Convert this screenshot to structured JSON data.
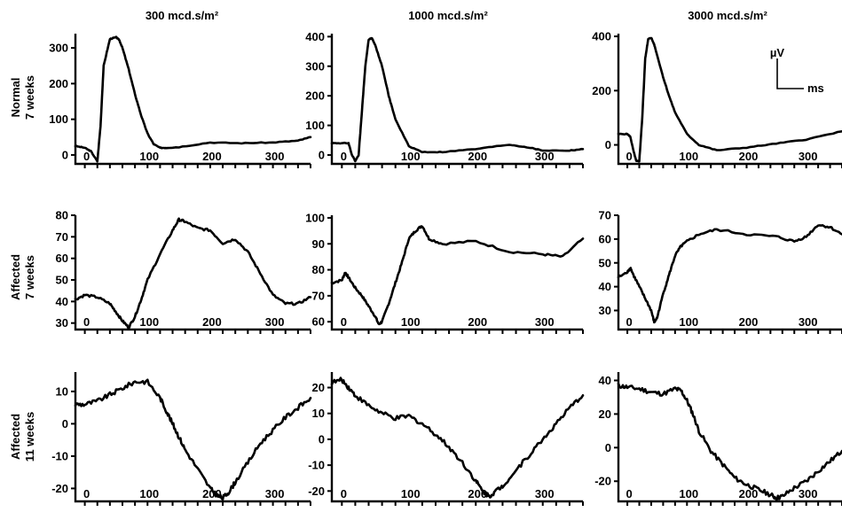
{
  "columns": [
    "300 mcd.s/m²",
    "1000 mcd.s/m²",
    "3000 mcd.s/m²"
  ],
  "rows": [
    {
      "line1": "Normal",
      "line2": "7 weeks"
    },
    {
      "line1": "Affected",
      "line2": "7 weeks"
    },
    {
      "line1": "Affected",
      "line2": "11 weeks"
    }
  ],
  "scale_bar": {
    "y_unit": "µV",
    "x_unit": "ms"
  },
  "chart_data": [
    {
      "type": "line",
      "column": "300 mcd.s/m²",
      "row": "Normal 7 weeks",
      "xlim": [
        -15,
        360
      ],
      "ylim": [
        -25,
        340
      ],
      "xticks": [
        0,
        100,
        200,
        300
      ],
      "yticks": [
        0,
        100,
        200,
        300
      ],
      "x": [
        -15,
        0,
        10,
        20,
        25,
        30,
        40,
        50,
        55,
        60,
        70,
        80,
        90,
        100,
        110,
        120,
        130,
        150,
        200,
        250,
        300,
        340,
        360
      ],
      "y": [
        25,
        20,
        10,
        -18,
        80,
        250,
        325,
        330,
        322,
        300,
        240,
        170,
        110,
        60,
        30,
        20,
        20,
        22,
        35,
        33,
        35,
        40,
        50
      ]
    },
    {
      "type": "line",
      "column": "1000 mcd.s/m²",
      "row": "Normal 7 weeks",
      "xlim": [
        -15,
        360
      ],
      "ylim": [
        -30,
        410
      ],
      "xticks": [
        0,
        100,
        200,
        300
      ],
      "yticks": [
        0,
        100,
        200,
        300,
        400
      ],
      "x": [
        -15,
        0,
        10,
        15,
        20,
        25,
        30,
        35,
        40,
        45,
        50,
        60,
        70,
        80,
        100,
        120,
        150,
        200,
        250,
        280,
        300,
        340,
        360
      ],
      "y": [
        40,
        40,
        40,
        0,
        -20,
        0,
        150,
        300,
        390,
        395,
        370,
        300,
        200,
        120,
        30,
        10,
        10,
        20,
        35,
        25,
        15,
        15,
        20
      ]
    },
    {
      "type": "line",
      "column": "3000 mcd.s/m²",
      "row": "Normal 7 weeks",
      "xlim": [
        -15,
        360
      ],
      "ylim": [
        -70,
        410
      ],
      "xticks": [
        0,
        100,
        200,
        300
      ],
      "yticks": [
        0,
        200,
        400
      ],
      "x": [
        -15,
        0,
        5,
        10,
        15,
        20,
        25,
        30,
        35,
        40,
        45,
        50,
        60,
        70,
        80,
        100,
        120,
        150,
        200,
        250,
        300,
        360
      ],
      "y": [
        40,
        40,
        30,
        -20,
        -60,
        -60,
        100,
        320,
        390,
        395,
        370,
        330,
        250,
        180,
        120,
        40,
        0,
        -20,
        -10,
        5,
        20,
        50
      ]
    },
    {
      "type": "line",
      "column": "300 mcd.s/m²",
      "row": "Affected 7 weeks",
      "xlim": [
        -15,
        360
      ],
      "ylim": [
        27,
        80
      ],
      "xticks": [
        0,
        100,
        200,
        300
      ],
      "yticks": [
        30,
        40,
        50,
        60,
        70,
        80
      ],
      "x": [
        -15,
        0,
        20,
        40,
        50,
        60,
        70,
        80,
        90,
        100,
        120,
        140,
        150,
        160,
        180,
        200,
        220,
        240,
        260,
        280,
        300,
        320,
        340,
        360
      ],
      "y": [
        41,
        43,
        42,
        39,
        35,
        31,
        28,
        33,
        41,
        50,
        62,
        73,
        78,
        77,
        74,
        73,
        67,
        69,
        63,
        53,
        43,
        39,
        39,
        42
      ]
    },
    {
      "type": "line",
      "column": "1000 mcd.s/m²",
      "row": "Affected 7 weeks",
      "xlim": [
        -15,
        360
      ],
      "ylim": [
        57,
        101
      ],
      "xticks": [
        0,
        100,
        200,
        300
      ],
      "yticks": [
        60,
        70,
        80,
        90,
        100
      ],
      "x": [
        -15,
        0,
        5,
        10,
        20,
        30,
        40,
        50,
        55,
        60,
        70,
        80,
        90,
        100,
        110,
        120,
        130,
        150,
        200,
        250,
        300,
        330,
        360
      ],
      "y": [
        75,
        76,
        79,
        77,
        73,
        70,
        66,
        62,
        59,
        60,
        67,
        75,
        83,
        92,
        95,
        97,
        92,
        90,
        91,
        87,
        86,
        85,
        92
      ]
    },
    {
      "type": "line",
      "column": "3000 mcd.s/m²",
      "row": "Affected 7 weeks",
      "xlim": [
        -15,
        360
      ],
      "ylim": [
        22,
        70
      ],
      "xticks": [
        0,
        100,
        200,
        300
      ],
      "yticks": [
        30,
        40,
        50,
        60,
        70
      ],
      "x": [
        -15,
        0,
        5,
        10,
        20,
        30,
        40,
        45,
        50,
        60,
        70,
        80,
        90,
        100,
        120,
        150,
        200,
        250,
        280,
        300,
        320,
        340,
        360
      ],
      "y": [
        44,
        46,
        48,
        45,
        40,
        35,
        30,
        25,
        27,
        37,
        45,
        53,
        57,
        59,
        62,
        64,
        62,
        61,
        59,
        61,
        66,
        65,
        62
      ]
    },
    {
      "type": "line",
      "column": "300 mcd.s/m²",
      "row": "Affected 11 weeks",
      "xlim": [
        -15,
        360
      ],
      "ylim": [
        -24,
        16
      ],
      "xticks": [
        0,
        100,
        200,
        300
      ],
      "yticks": [
        -20,
        -10,
        0,
        10
      ],
      "x": [
        -15,
        0,
        20,
        40,
        60,
        80,
        100,
        120,
        130,
        140,
        150,
        160,
        180,
        200,
        210,
        220,
        230,
        240,
        260,
        280,
        300,
        320,
        340,
        360
      ],
      "y": [
        6,
        6,
        7,
        9,
        11,
        13,
        13,
        8,
        4,
        0,
        -4,
        -8,
        -14,
        -20,
        -22,
        -23,
        -21,
        -18,
        -12,
        -6,
        -2,
        2,
        5,
        8
      ]
    },
    {
      "type": "line",
      "column": "1000 mcd.s/m²",
      "row": "Affected 11 weeks",
      "xlim": [
        -15,
        360
      ],
      "ylim": [
        -24,
        26
      ],
      "xticks": [
        0,
        100,
        200,
        300
      ],
      "yticks": [
        -20,
        -10,
        0,
        10,
        20
      ],
      "x": [
        -15,
        0,
        10,
        20,
        40,
        60,
        80,
        100,
        120,
        140,
        160,
        180,
        200,
        210,
        220,
        230,
        240,
        260,
        280,
        300,
        320,
        340,
        360
      ],
      "y": [
        22,
        23,
        20,
        17,
        13,
        10,
        8,
        9,
        6,
        2,
        -3,
        -9,
        -16,
        -20,
        -22,
        -20,
        -18,
        -12,
        -6,
        0,
        6,
        12,
        17
      ]
    },
    {
      "type": "line",
      "column": "3000 mcd.s/m²",
      "row": "Affected 11 weeks",
      "xlim": [
        -15,
        360
      ],
      "ylim": [
        -32,
        45
      ],
      "xticks": [
        0,
        100,
        200,
        300
      ],
      "yticks": [
        -20,
        0,
        20,
        40
      ],
      "x": [
        -15,
        0,
        20,
        40,
        60,
        80,
        90,
        100,
        110,
        120,
        140,
        160,
        180,
        200,
        220,
        240,
        250,
        260,
        280,
        300,
        320,
        340,
        360
      ],
      "y": [
        37,
        36,
        35,
        33,
        32,
        35,
        34,
        28,
        20,
        10,
        -2,
        -10,
        -18,
        -22,
        -25,
        -28,
        -30,
        -29,
        -24,
        -20,
        -14,
        -8,
        -2
      ]
    }
  ]
}
